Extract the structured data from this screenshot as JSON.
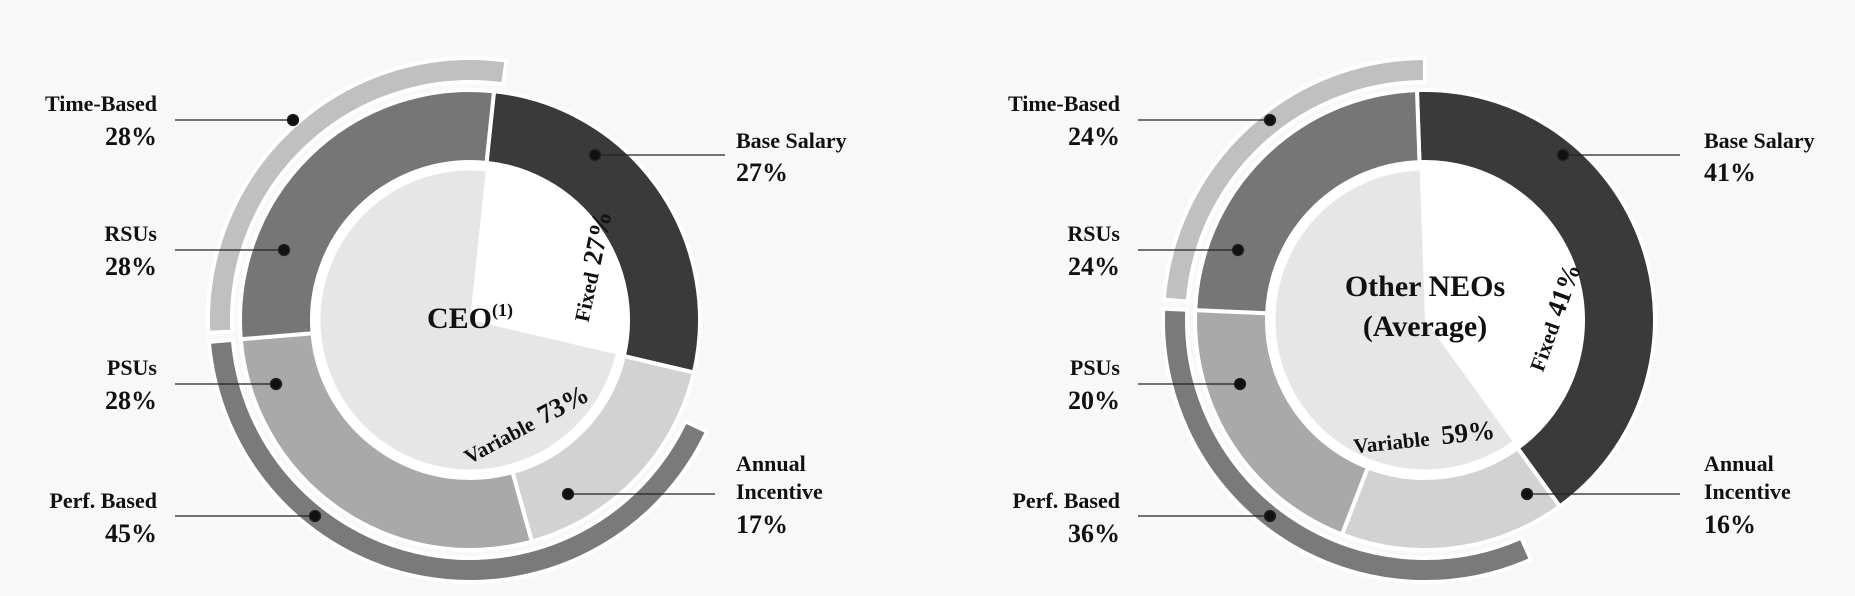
{
  "chart_data": [
    {
      "type": "nested-donut",
      "title": "CEO",
      "title_superscript": "(1)",
      "inner_pie": [
        {
          "label": "Fixed",
          "value": 27,
          "display": "27%"
        },
        {
          "label": "Variable",
          "value": 73,
          "display": "73%"
        }
      ],
      "middle_ring": [
        {
          "name": "Base Salary",
          "value": 27,
          "display": "27%",
          "color": "#3a3a3a"
        },
        {
          "name": "Annual Incentive",
          "value": 17,
          "display": "17%",
          "color": "#d2d2d2"
        },
        {
          "name": "PSUs",
          "value": 28,
          "display": "28%",
          "color": "#a9a9a9"
        },
        {
          "name": "RSUs",
          "value": 28,
          "display": "28%",
          "color": "#767676"
        }
      ],
      "outer_ring": [
        {
          "name": "Perf. Based",
          "value": 45,
          "display": "45%",
          "color": "#7a7a7a"
        },
        {
          "name": "Time-Based",
          "value": 28,
          "display": "28%",
          "color": "#c0c0c0"
        }
      ]
    },
    {
      "type": "nested-donut",
      "title": "Other NEOs",
      "subtitle": "(Average)",
      "inner_pie": [
        {
          "label": "Fixed",
          "value": 41,
          "display": "41%"
        },
        {
          "label": "Variable",
          "value": 59,
          "display": "59%"
        }
      ],
      "middle_ring": [
        {
          "name": "Base Salary",
          "value": 41,
          "display": "41%",
          "color": "#3a3a3a"
        },
        {
          "name": "Annual Incentive",
          "value": 16,
          "display": "16%",
          "color": "#d2d2d2"
        },
        {
          "name": "PSUs",
          "value": 20,
          "display": "20%",
          "color": "#a9a9a9"
        },
        {
          "name": "RSUs",
          "value": 24,
          "display": "24%",
          "color": "#767676"
        }
      ],
      "outer_ring": [
        {
          "name": "Perf. Based",
          "value": 36,
          "display": "36%",
          "color": "#7a7a7a"
        },
        {
          "name": "Time-Based",
          "value": 24,
          "display": "24%",
          "color": "#c0c0c0"
        }
      ]
    }
  ],
  "legend_labels": [
    {
      "time_based": {
        "name": "Time-Based",
        "value": "28%"
      },
      "rsus": {
        "name": "RSUs",
        "value": "28%"
      },
      "psus": {
        "name": "PSUs",
        "value": "28%"
      },
      "perf_based": {
        "name": "Perf. Based",
        "value": "45%"
      },
      "base_salary": {
        "name": "Base Salary",
        "value": "27%"
      },
      "annual_incentive": {
        "name_line1": "Annual",
        "name_line2": "Incentive",
        "value": "17%"
      }
    },
    {
      "time_based": {
        "name": "Time-Based",
        "value": "24%"
      },
      "rsus": {
        "name": "RSUs",
        "value": "24%"
      },
      "psus": {
        "name": "PSUs",
        "value": "20%"
      },
      "perf_based": {
        "name": "Perf. Based",
        "value": "36%"
      },
      "base_salary": {
        "name": "Base Salary",
        "value": "41%"
      },
      "annual_incentive": {
        "name_line1": "Annual",
        "name_line2": "Incentive",
        "value": "16%"
      }
    }
  ],
  "colors": {
    "background": "#f8f8f8",
    "inner_fixed": "#ffffff",
    "inner_variable": "#e6e6e6",
    "ring_gap": "#ffffff"
  }
}
